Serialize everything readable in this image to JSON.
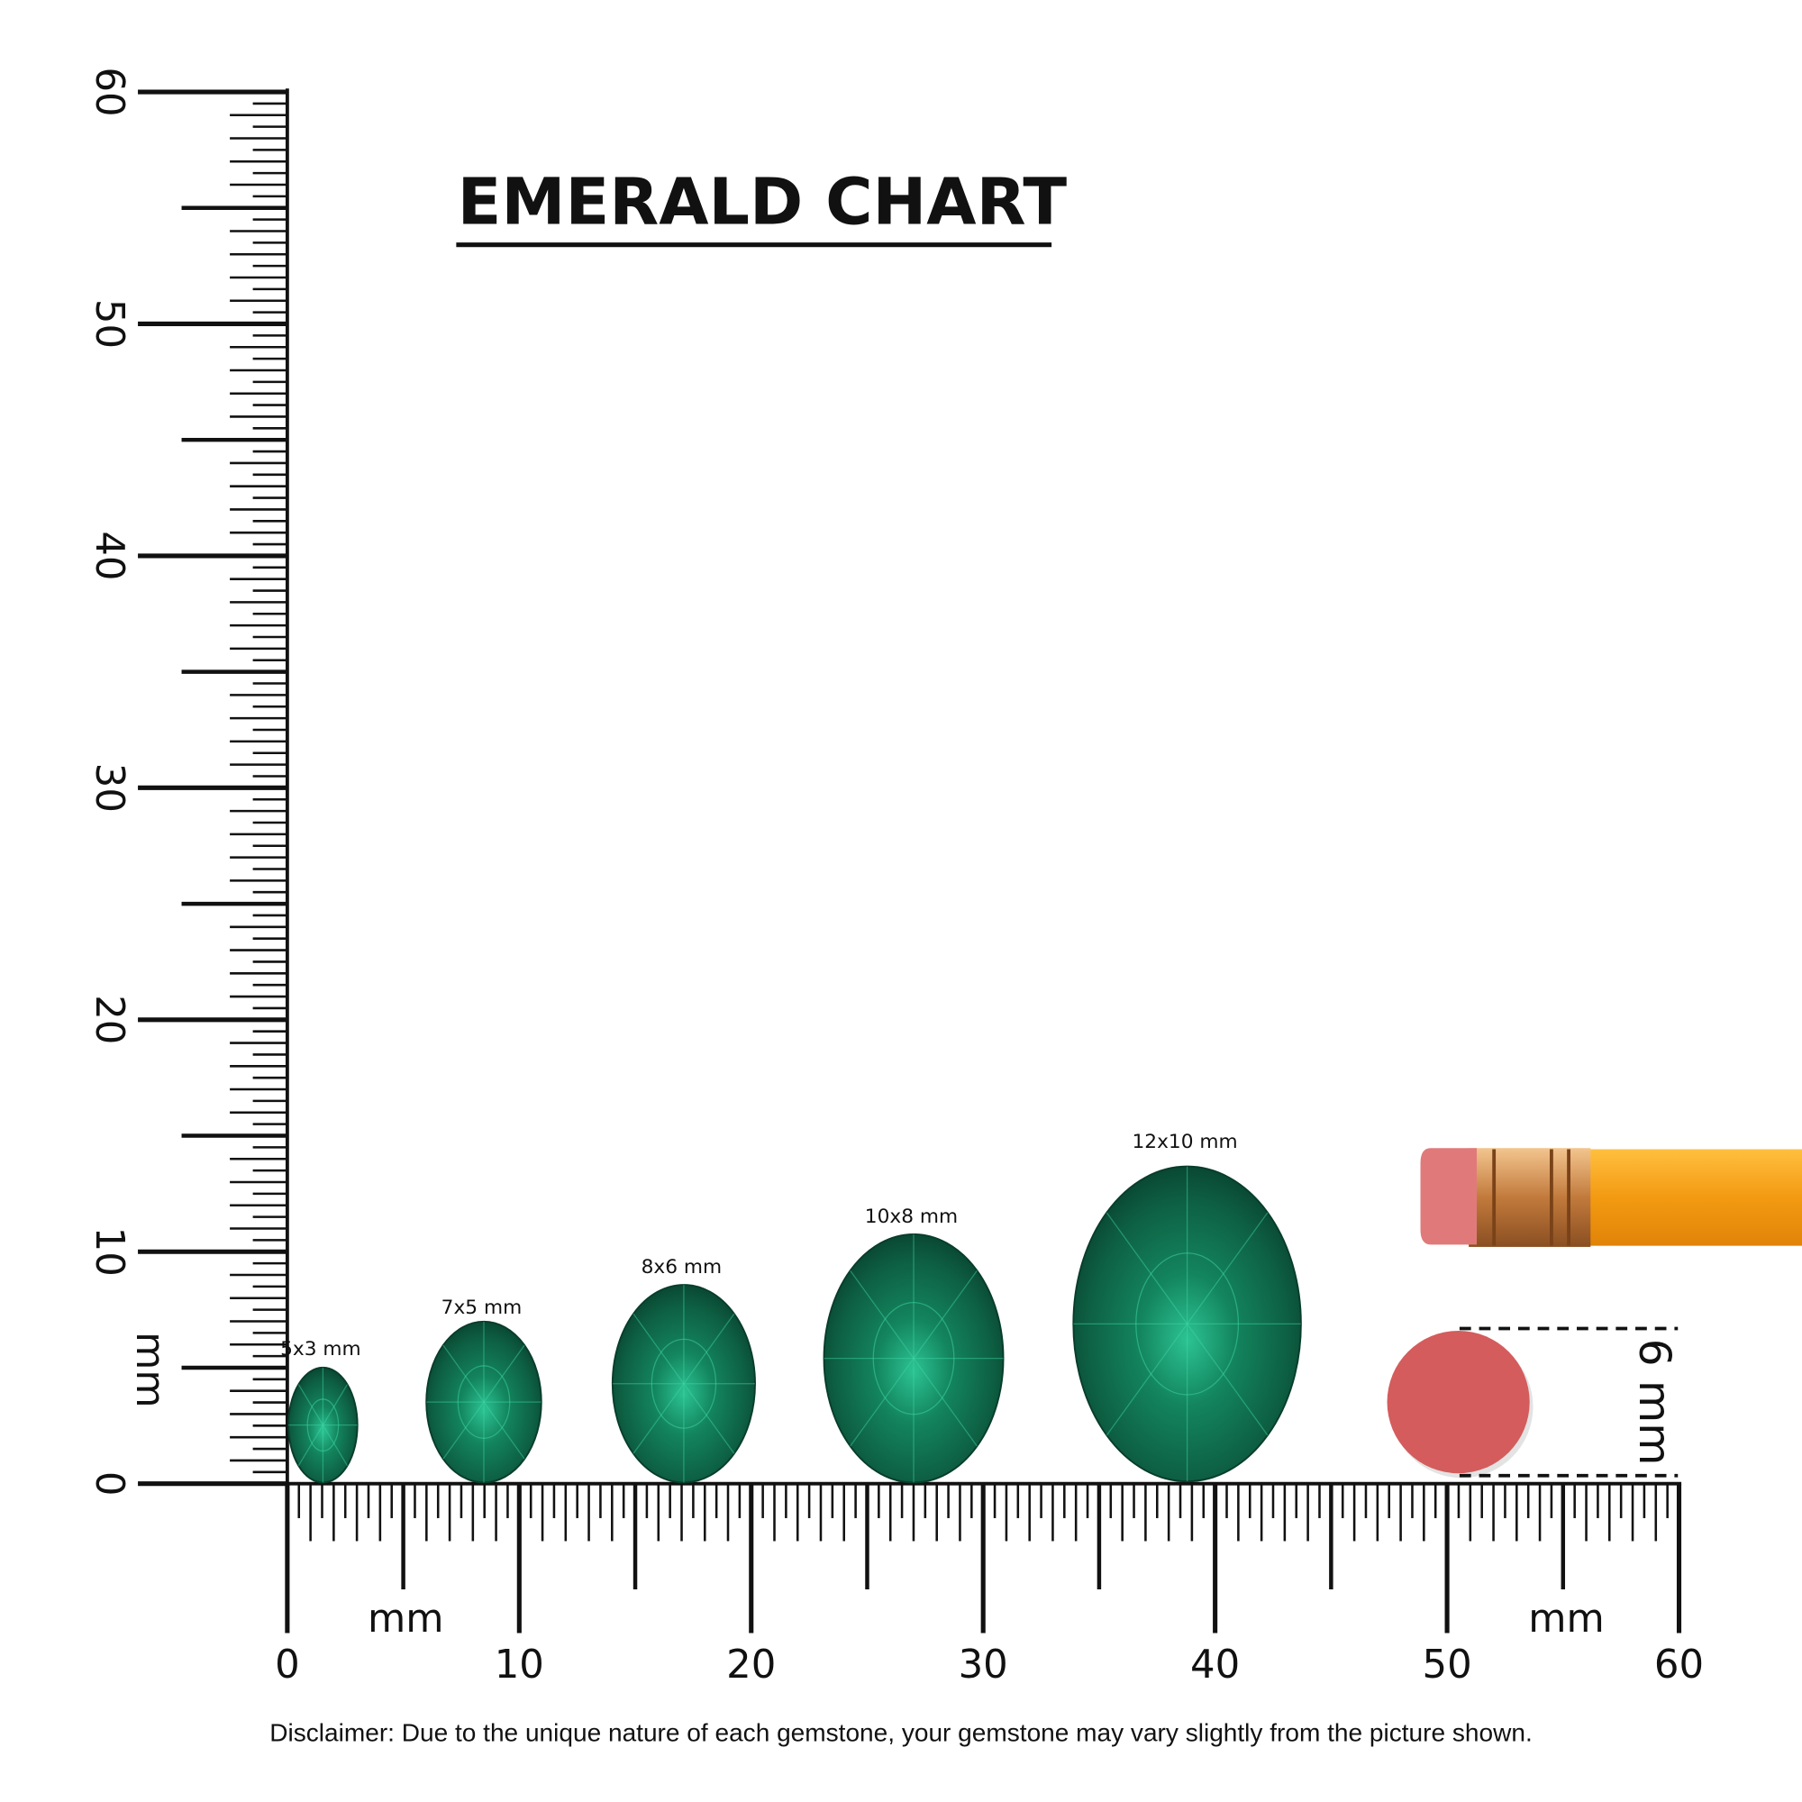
{
  "title": "EMERALD CHART",
  "ruler": {
    "x_labels": [
      0,
      10,
      20,
      30,
      40,
      50,
      60
    ],
    "y_labels": [
      0,
      10,
      20,
      30,
      40,
      50,
      60
    ],
    "unit": "mm"
  },
  "gems": [
    {
      "label": "5x3 mm"
    },
    {
      "label": "7x5 mm"
    },
    {
      "label": "8x6 mm"
    },
    {
      "label": "10x8 mm"
    },
    {
      "label": "12x10 mm"
    }
  ],
  "pencil_label": "6 mm",
  "disclaimer": "Disclaimer: Due to the unique nature of each gemstone, your gemstone may vary slightly from the picture shown."
}
